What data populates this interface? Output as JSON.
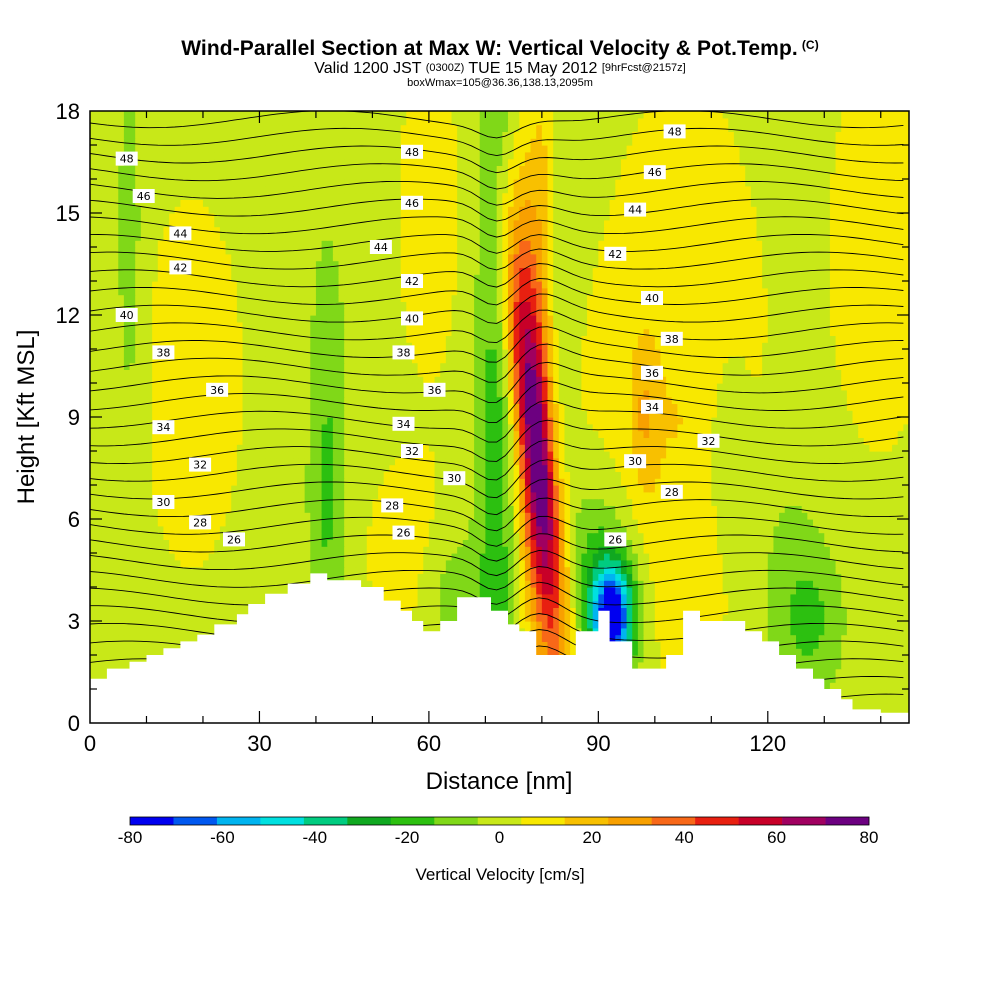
{
  "title": {
    "main": "Wind-Parallel Section at Max W: Vertical Velocity & Pot.Temp.",
    "main_tag": "(C)",
    "valid_prefix": "Valid 1200 JST",
    "valid_utc": "(0300Z)",
    "valid_date": "TUE 15 May 2012",
    "forecast_tag": "[9hrFcst@2157z]",
    "box": "boxWmax=105@36.36,138.13,2095m"
  },
  "chart_data": {
    "type": "heatmap",
    "xlabel": "Distance [nm]",
    "ylabel": "Height [Kft MSL]",
    "xlim": [
      0,
      145
    ],
    "ylim": [
      0,
      18
    ],
    "x_ticks": [
      0,
      30,
      60,
      90,
      120
    ],
    "y_ticks": [
      0,
      3,
      6,
      9,
      12,
      15,
      18
    ],
    "colorbar": {
      "title": "Vertical Velocity [cm/s]",
      "tick_labels": [
        -80,
        -60,
        -40,
        -20,
        0,
        20,
        40,
        60,
        80
      ],
      "bins": [
        -80,
        -70,
        -60,
        -50,
        -40,
        -30,
        -20,
        -10,
        0,
        10,
        20,
        30,
        40,
        50,
        60,
        70,
        80
      ],
      "colors": [
        "#0000f0",
        "#0058f0",
        "#00b4f0",
        "#00e0e0",
        "#00cc80",
        "#10a820",
        "#2cc010",
        "#80d818",
        "#c8e818",
        "#f8e800",
        "#f8c000",
        "#f8a000",
        "#f86818",
        "#e82010",
        "#c80028",
        "#a00060",
        "#6c0080"
      ]
    },
    "potential_temperature_labels": [
      {
        "value": "48",
        "x": 6.5,
        "y": 16.6
      },
      {
        "value": "46",
        "x": 9.5,
        "y": 15.5
      },
      {
        "value": "44",
        "x": 16,
        "y": 14.4
      },
      {
        "value": "42",
        "x": 16,
        "y": 13.4
      },
      {
        "value": "40",
        "x": 6.5,
        "y": 12.0
      },
      {
        "value": "38",
        "x": 13,
        "y": 10.9
      },
      {
        "value": "36",
        "x": 22.5,
        "y": 9.8
      },
      {
        "value": "34",
        "x": 13,
        "y": 8.7
      },
      {
        "value": "32",
        "x": 19.5,
        "y": 7.6
      },
      {
        "value": "30",
        "x": 13,
        "y": 6.5
      },
      {
        "value": "28",
        "x": 19.5,
        "y": 5.9
      },
      {
        "value": "26",
        "x": 25.5,
        "y": 5.4
      },
      {
        "value": "48",
        "x": 57,
        "y": 16.8
      },
      {
        "value": "46",
        "x": 57,
        "y": 15.3
      },
      {
        "value": "44",
        "x": 51.5,
        "y": 14.0
      },
      {
        "value": "42",
        "x": 57,
        "y": 13.0
      },
      {
        "value": "40",
        "x": 57,
        "y": 11.9
      },
      {
        "value": "38",
        "x": 55.5,
        "y": 10.9
      },
      {
        "value": "36",
        "x": 61,
        "y": 9.8
      },
      {
        "value": "34",
        "x": 55.5,
        "y": 8.8
      },
      {
        "value": "32",
        "x": 57,
        "y": 8.0
      },
      {
        "value": "30",
        "x": 64.5,
        "y": 7.2
      },
      {
        "value": "28",
        "x": 53.5,
        "y": 6.4
      },
      {
        "value": "26",
        "x": 55.5,
        "y": 5.6
      },
      {
        "value": "48",
        "x": 103.5,
        "y": 17.4
      },
      {
        "value": "46",
        "x": 100,
        "y": 16.2
      },
      {
        "value": "44",
        "x": 96.5,
        "y": 15.1
      },
      {
        "value": "42",
        "x": 93,
        "y": 13.8
      },
      {
        "value": "40",
        "x": 99.5,
        "y": 12.5
      },
      {
        "value": "38",
        "x": 103,
        "y": 11.3
      },
      {
        "value": "36",
        "x": 99.5,
        "y": 10.3
      },
      {
        "value": "34",
        "x": 99.5,
        "y": 9.3
      },
      {
        "value": "32",
        "x": 109.5,
        "y": 8.3
      },
      {
        "value": "30",
        "x": 96.5,
        "y": 7.7
      },
      {
        "value": "28",
        "x": 103,
        "y": 6.8
      },
      {
        "value": "26",
        "x": 93,
        "y": 5.4
      }
    ],
    "terrain": [
      [
        0,
        1.3
      ],
      [
        3,
        1.3
      ],
      [
        3,
        1.6
      ],
      [
        7,
        1.6
      ],
      [
        7,
        1.8
      ],
      [
        10,
        1.8
      ],
      [
        10,
        2.0
      ],
      [
        13,
        2.0
      ],
      [
        13,
        2.2
      ],
      [
        16,
        2.2
      ],
      [
        16,
        2.4
      ],
      [
        19,
        2.4
      ],
      [
        19,
        2.6
      ],
      [
        22,
        2.6
      ],
      [
        22,
        2.9
      ],
      [
        26,
        2.9
      ],
      [
        26,
        3.2
      ],
      [
        28,
        3.2
      ],
      [
        28,
        3.5
      ],
      [
        31,
        3.5
      ],
      [
        31,
        3.8
      ],
      [
        35,
        3.8
      ],
      [
        35,
        4.1
      ],
      [
        39,
        4.1
      ],
      [
        39,
        4.4
      ],
      [
        42,
        4.4
      ],
      [
        42,
        4.2
      ],
      [
        48,
        4.2
      ],
      [
        48,
        4.0
      ],
      [
        52,
        4.0
      ],
      [
        52,
        3.6
      ],
      [
        55,
        3.6
      ],
      [
        55,
        3.3
      ],
      [
        57,
        3.3
      ],
      [
        57,
        3.0
      ],
      [
        59,
        3.0
      ],
      [
        59,
        2.7
      ],
      [
        62,
        2.7
      ],
      [
        62,
        3.0
      ],
      [
        65,
        3.0
      ],
      [
        65,
        3.7
      ],
      [
        71,
        3.7
      ],
      [
        71,
        3.3
      ],
      [
        74,
        3.3
      ],
      [
        74,
        2.9
      ],
      [
        76,
        2.9
      ],
      [
        76,
        2.7
      ],
      [
        79,
        2.7
      ],
      [
        79,
        2.0
      ],
      [
        86,
        2.0
      ],
      [
        86,
        2.7
      ],
      [
        90,
        2.7
      ],
      [
        90,
        3.3
      ],
      [
        92,
        3.3
      ],
      [
        92,
        2.4
      ],
      [
        96,
        2.4
      ],
      [
        96,
        1.6
      ],
      [
        102,
        1.6
      ],
      [
        102,
        2.0
      ],
      [
        105,
        2.0
      ],
      [
        105,
        3.3
      ],
      [
        108,
        3.3
      ],
      [
        108,
        3.0
      ],
      [
        116,
        3.0
      ],
      [
        116,
        2.7
      ],
      [
        119,
        2.7
      ],
      [
        119,
        2.4
      ],
      [
        122,
        2.4
      ],
      [
        122,
        2.0
      ],
      [
        125,
        2.0
      ],
      [
        125,
        1.6
      ],
      [
        128,
        1.6
      ],
      [
        128,
        1.3
      ],
      [
        130,
        1.3
      ],
      [
        130,
        1.0
      ],
      [
        133,
        1.0
      ],
      [
        133,
        0.7
      ],
      [
        135,
        0.7
      ],
      [
        135,
        0.4
      ],
      [
        140,
        0.4
      ],
      [
        140,
        0.3
      ],
      [
        145,
        0.3
      ]
    ]
  }
}
